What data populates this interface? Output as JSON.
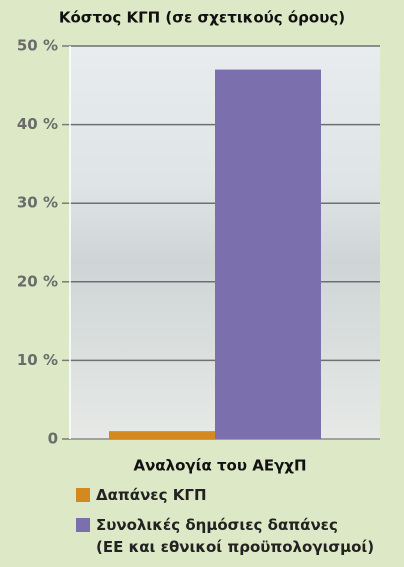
{
  "chart_data": {
    "type": "bar",
    "title": "Κόστος ΚΓΠ (σε σχετικούς όρους)",
    "categories": [
      "Αναλογία του ΑΕγχΠ"
    ],
    "series": [
      {
        "name": "Δαπάνες ΚΓΠ",
        "color": "#d4891e",
        "values": [
          1
        ]
      },
      {
        "name": "Συνολικές δημόσιες δαπάνες\n(ΕΕ και εθνικοί προϋπολογισμοί)",
        "color": "#7b6fae",
        "values": [
          47
        ]
      }
    ],
    "ylim": [
      0,
      50
    ],
    "yticks": [
      0,
      {
        "value": 10,
        "label": "10 %"
      },
      {
        "value": 20,
        "label": "20 %"
      },
      {
        "value": 30,
        "label": "30 %"
      },
      {
        "value": 40,
        "label": "40 %"
      },
      {
        "value": 50,
        "label": "50 %"
      }
    ],
    "grid": true
  }
}
